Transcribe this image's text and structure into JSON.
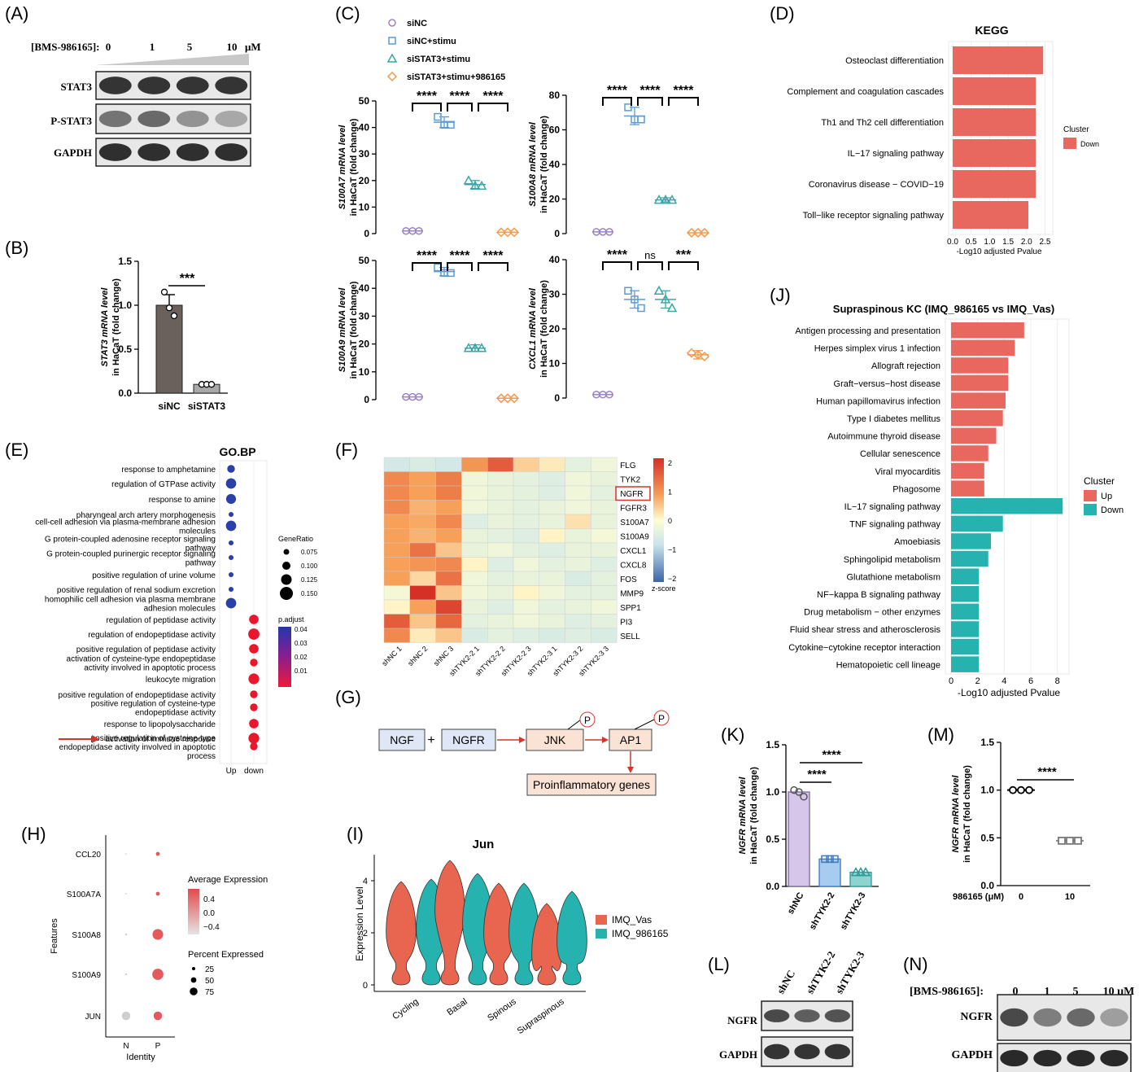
{
  "figure": {
    "colors": {
      "red": "#e8685f",
      "teal": "#26b3b0",
      "purple": "#9b83c5",
      "blue": "#5b9bd5",
      "tealmark": "#3aa6a8",
      "orange": "#f39a4e",
      "dark": "#6b615c",
      "grey": "#a8a8a8",
      "lightbar": "#d6c6e9",
      "lightblue": "#a8ccf0",
      "lightteal": "#8fd3d0"
    },
    "panels": {
      "a": "(A)",
      "b": "(B)",
      "c": "(C)",
      "d": "(D)",
      "e": "(E)",
      "f": "(F)",
      "g": "(G)",
      "h": "(H)",
      "i": "(I)",
      "j": "(J)",
      "k": "(K)",
      "l": "(L)",
      "m": "(M)",
      "n": "(N)"
    },
    "A": {
      "header": "[BMS-986165]:",
      "doses": [
        "0",
        "1",
        "5",
        "10"
      ],
      "unit": "μM",
      "rows": [
        "STAT3",
        "P-STAT3",
        "GAPDH"
      ]
    },
    "B": {
      "ylabel": "STAT3 mRNA level",
      "ylabel2": "in HaCaT (fold change)",
      "yticks": [
        "0.0",
        "0.5",
        "1.0",
        "1.5"
      ],
      "categories": [
        "siNC",
        "siSTAT3"
      ],
      "sig": "***"
    },
    "C": {
      "legend": [
        "siNC",
        "siNC+stimu",
        "siSTAT3+stimu",
        "siSTAT3+stimu+986165"
      ],
      "ylabel2": "in HaCaT (fold change)",
      "plots": [
        {
          "gene": "S100A7",
          "ylabel": "S100A7 mRNA level",
          "yticks": [
            "0",
            "10",
            "20",
            "30",
            "40",
            "50"
          ],
          "sig": [
            "****",
            "****",
            "****"
          ]
        },
        {
          "gene": "S100A8",
          "ylabel": "S100A8 mRNA level",
          "yticks": [
            "0",
            "20",
            "40",
            "60",
            "80"
          ],
          "sig": [
            "****",
            "****",
            "****"
          ]
        },
        {
          "gene": "S100A9",
          "ylabel": "S100A9 mRNA level",
          "yticks": [
            "0",
            "10",
            "20",
            "30",
            "40",
            "50"
          ],
          "sig": [
            "****",
            "****",
            "****"
          ]
        },
        {
          "gene": "CXCL1",
          "ylabel": "CXCL1 mRNA level",
          "yticks": [
            "0",
            "10",
            "20",
            "30",
            "40"
          ],
          "sig": [
            "****",
            "ns",
            "***"
          ]
        }
      ]
    },
    "D": {
      "title": "KEGG",
      "xlabel": "-Log10 adjusted Pvalue",
      "xticks": [
        "0.0",
        "0.5",
        "1.0",
        "1.5",
        "2.0",
        "2.5"
      ],
      "legend_title": "Cluster",
      "legend": [
        "Down"
      ]
    },
    "E": {
      "title": "GO.BP",
      "xcats": [
        "Up",
        "down"
      ],
      "size_title": "GeneRatio",
      "size_labels": [
        "0.075",
        "0.100",
        "0.125",
        "0.150"
      ],
      "color_title": "p.adjust",
      "color_labels": [
        "0.04",
        "0.03",
        "0.02",
        "0.01"
      ],
      "terms": [
        [
          "response to amphetamine"
        ],
        [
          "regulation of GTPase activity"
        ],
        [
          "response to amine"
        ],
        [
          "pharyngeal arch artery morphogenesis"
        ],
        [
          "cell-cell adhesion via plasma-membrane adhesion",
          "molecules"
        ],
        [
          "G protein-coupled adenosine receptor signaling",
          "pathway"
        ],
        [
          "G protein-coupled purinergic receptor signaling",
          "pathway"
        ],
        [
          "positive regulation of urine volume"
        ],
        [
          "positive regulation of renal sodium excretion"
        ],
        [
          "homophilic cell adhesion via plasma membrane",
          "adhesion molecules"
        ],
        [
          "regulation of peptidase activity"
        ],
        [
          "regulation of endopeptidase activity"
        ],
        [
          "positive regulation of peptidase activity"
        ],
        [
          "activation of cysteine-type endopeptidase",
          "activity involved in apoptotic process"
        ],
        [
          "leukocyte migration"
        ],
        [
          "positive regulation of endopeptidase activity"
        ],
        [
          "positive regulation of cysteine-type",
          "endopeptidase activity"
        ],
        [
          "response to lipopolysaccharide"
        ],
        [
          "activation of immune response"
        ],
        [
          "positive regulation of cysteine-type",
          "endopeptidase activity involved in apoptotic",
          "process"
        ]
      ]
    },
    "F": {
      "genes": [
        "FLG",
        "TYK2",
        "NGFR",
        "FGFR3",
        "S100A7",
        "S100A9",
        "CXCL1",
        "CXCL8",
        "FOS",
        "MMP9",
        "SPP1",
        "PI3",
        "SELL"
      ],
      "samples": [
        "shNC 1",
        "shNC 2",
        "shNC 3",
        "shTYK2-2 1",
        "shTYK2-2 2",
        "shTYK2-2 3",
        "shTYK2-3 1",
        "shTYK2-3 2",
        "shTYK2-3 3"
      ],
      "scale_labels": [
        "2",
        "1",
        "0",
        "−1",
        "−2"
      ],
      "scale_title": "z-score"
    },
    "G": {
      "ngf": "NGF",
      "plus": "+",
      "ngfr": "NGFR",
      "jnk": "JNK",
      "ap1": "AP1",
      "p": "P",
      "out": "Proinflammatory genes"
    },
    "H": {
      "features": [
        "CCL20",
        "S100A7A",
        "S100A8",
        "S100A9",
        "JUN"
      ],
      "identity": [
        "N",
        "P"
      ],
      "ylabel": "Features",
      "xlabel": "Identity",
      "avg_title": "Average Expression",
      "avg_labels": [
        "0.4",
        "0.0",
        "−0.4"
      ],
      "pct_title": "Percent Expressed",
      "pct_labels": [
        "25",
        "50",
        "75"
      ]
    },
    "I": {
      "title": "Jun",
      "ylabel": "Expression Level",
      "yticks": [
        "0",
        "2",
        "4"
      ],
      "categories": [
        "Cycling",
        "Basal",
        "Spinous",
        "Supraspinous"
      ],
      "legend": [
        "IMQ_Vas",
        "IMQ_986165"
      ]
    },
    "J": {
      "title": "Supraspinous  KC  (IMQ_986165 vs IMQ_Vas)",
      "xlabel": "-Log10 adjusted Pvalue",
      "xticks": [
        "0",
        "2",
        "4",
        "6",
        "8"
      ],
      "legend_title": "Cluster",
      "legend": [
        "Up",
        "Down"
      ]
    },
    "K": {
      "ylabel": "NGFR mRNA level",
      "ylabel2": "in HaCaT (fold change)",
      "yticks": [
        "0.0",
        "0.5",
        "1.0",
        "1.5"
      ],
      "categories": [
        "shNC",
        "shTYK2-2",
        "shTYK2-3"
      ],
      "sig": [
        "****",
        "****"
      ]
    },
    "L": {
      "lanes": [
        "shNC",
        "shTYK2-2",
        "shTYK2-3"
      ],
      "rows": [
        "NGFR",
        "GAPDH"
      ]
    },
    "M": {
      "ylabel": "NGFR mRNA level",
      "ylabel2": "in HaCaT (fold change)",
      "yticks": [
        "0.0",
        "0.5",
        "1.0",
        "1.5"
      ],
      "xlabel": "986165 (μM)",
      "categories": [
        "0",
        "10"
      ],
      "sig": "****"
    },
    "N": {
      "header": "[BMS-986165]:",
      "doses": [
        "0",
        "1",
        "5",
        "10 μM"
      ],
      "rows": [
        "NGFR",
        "GAPDH"
      ]
    }
  },
  "chart_data": [
    {
      "panel": "B",
      "type": "bar",
      "categories": [
        "siNC",
        "siSTAT3"
      ],
      "values": [
        1.0,
        0.1
      ],
      "points": [
        [
          1.15,
          0.97,
          0.88
        ],
        [
          0.1,
          0.1,
          0.1
        ]
      ],
      "ylabel": "STAT3 mRNA level in HaCaT (fold change)",
      "ylim": [
        0,
        1.5
      ]
    },
    {
      "panel": "C1",
      "type": "scatter",
      "categories": [
        "siNC",
        "siNC+stimu",
        "siSTAT3+stimu",
        "siSTAT3+stimu+986165"
      ],
      "means": [
        1,
        42,
        18.5,
        0.5
      ],
      "points": [
        [
          1,
          1,
          1
        ],
        [
          44,
          41,
          41
        ],
        [
          20,
          18,
          18
        ],
        [
          0.5,
          0.5,
          0.5
        ]
      ],
      "ylabel": "S100A7 mRNA level in HaCaT (fold change)",
      "ylim": [
        0,
        50
      ]
    },
    {
      "panel": "C2",
      "type": "scatter",
      "categories": [
        "siNC",
        "siNC+stimu",
        "siSTAT3+stimu",
        "siSTAT3+stimu+986165"
      ],
      "means": [
        1,
        68,
        19.5,
        0.5
      ],
      "points": [
        [
          1,
          1,
          1
        ],
        [
          73,
          66,
          66
        ],
        [
          19.5,
          19.5,
          19.5
        ],
        [
          0.5,
          0.5,
          0.5
        ]
      ],
      "ylabel": "S100A8 mRNA level in HaCaT (fold change)",
      "ylim": [
        0,
        80
      ]
    },
    {
      "panel": "C3",
      "type": "scatter",
      "categories": [
        "siNC",
        "siNC+stimu",
        "siSTAT3+stimu",
        "siSTAT3+stimu+986165"
      ],
      "means": [
        1,
        46,
        18.5,
        0.5
      ],
      "points": [
        [
          1,
          1,
          1
        ],
        [
          47.5,
          45.5,
          45.5
        ],
        [
          18.5,
          18.5,
          18.5
        ],
        [
          0.5,
          0.5,
          0.5
        ]
      ],
      "ylabel": "S100A9 mRNA level in HaCaT (fold change)",
      "ylim": [
        0,
        50
      ]
    },
    {
      "panel": "C4",
      "type": "scatter",
      "categories": [
        "siNC",
        "siNC+stimu",
        "siSTAT3+stimu",
        "siSTAT3+stimu+986165"
      ],
      "means": [
        1,
        28.5,
        28.5,
        12.5
      ],
      "points": [
        [
          1,
          1,
          1
        ],
        [
          31,
          28.5,
          26
        ],
        [
          31,
          28.5,
          26
        ],
        [
          13,
          12.5,
          12
        ]
      ],
      "ylabel": "CXCL1 mRNA level in HaCaT (fold change)",
      "ylim": [
        0,
        40
      ]
    },
    {
      "panel": "D",
      "type": "bar",
      "categories": [
        "Osteoclast differentiation",
        "Complement and coagulation cascades",
        "Th1 and Th2 cell differentiation",
        "IL−17 signaling pathway",
        "Coronavirus disease − COVID−19",
        "Toll−like receptor signaling pathway"
      ],
      "values": [
        2.45,
        2.25,
        2.25,
        2.25,
        2.25,
        2.05
      ],
      "series": [
        {
          "name": "Down",
          "values": [
            2.45,
            2.25,
            2.25,
            2.25,
            2.25,
            2.05
          ]
        }
      ],
      "xlabel": "−Log10 adjusted Pvalue",
      "xlim": [
        0,
        2.6
      ]
    },
    {
      "panel": "E",
      "type": "scatter",
      "groups": [
        "Up",
        "Up",
        "Up",
        "Up",
        "Up",
        "Up",
        "Up",
        "Up",
        "Up",
        "Up",
        "down",
        "down",
        "down",
        "down",
        "down",
        "down",
        "down",
        "down",
        "down",
        "down"
      ],
      "gene_ratio": [
        0.1,
        0.13,
        0.125,
        0.07,
        0.13,
        0.07,
        0.07,
        0.07,
        0.07,
        0.13,
        0.12,
        0.14,
        0.12,
        0.1,
        0.135,
        0.1,
        0.1,
        0.12,
        0.135,
        0.1
      ],
      "p_adjust": [
        0.045,
        0.045,
        0.045,
        0.045,
        0.045,
        0.045,
        0.045,
        0.045,
        0.045,
        0.045,
        0.005,
        0.005,
        0.005,
        0.005,
        0.005,
        0.005,
        0.005,
        0.005,
        0.005,
        0.005
      ]
    },
    {
      "panel": "F",
      "type": "heatmap",
      "rows": [
        "FLG",
        "TYK2",
        "NGFR",
        "FGFR3",
        "S100A7",
        "S100A9",
        "CXCL1",
        "CXCL8",
        "FOS",
        "MMP9",
        "SPP1",
        "PI3",
        "SELL"
      ],
      "columns": [
        "shNC 1",
        "shNC 2",
        "shNC 3",
        "shTYK2-2 1",
        "shTYK2-2 2",
        "shTYK2-2 3",
        "shTYK2-3 1",
        "shTYK2-3 2",
        "shTYK2-3 3"
      ],
      "values": [
        [
          -0.8,
          -0.7,
          -0.8,
          1.1,
          1.6,
          0.5,
          0.2,
          -0.5,
          -0.3
        ],
        [
          1.2,
          1.0,
          1.3,
          -0.3,
          -0.4,
          -0.5,
          -0.6,
          -0.3,
          -0.4
        ],
        [
          1.2,
          1.0,
          1.3,
          -0.3,
          -0.4,
          -0.5,
          -0.6,
          -0.3,
          -0.5
        ],
        [
          1.2,
          0.8,
          1.0,
          -0.3,
          -0.4,
          -0.5,
          -0.4,
          -0.3,
          -0.4
        ],
        [
          1.0,
          0.9,
          1.2,
          -0.6,
          -0.4,
          -0.5,
          -0.4,
          0.3,
          -0.4
        ],
        [
          1.0,
          0.8,
          1.0,
          -0.4,
          -0.5,
          -0.6,
          0.1,
          -0.4,
          -0.2
        ],
        [
          1.0,
          1.4,
          0.6,
          -0.4,
          -0.3,
          -0.5,
          -0.6,
          -0.4,
          -0.4
        ],
        [
          1.0,
          1.1,
          1.2,
          0.1,
          -0.6,
          -0.3,
          -0.5,
          -0.4,
          -0.6
        ],
        [
          1.0,
          0.4,
          1.4,
          -0.3,
          -0.5,
          -0.4,
          -0.4,
          -0.7,
          -0.5
        ],
        [
          -0.2,
          2.0,
          0.6,
          -0.3,
          -0.4,
          0.1,
          -0.3,
          -0.5,
          -0.5
        ],
        [
          0.1,
          1.0,
          1.8,
          -0.4,
          -0.6,
          -0.3,
          -0.5,
          -0.4,
          -0.3
        ],
        [
          1.6,
          0.6,
          1.5,
          -0.5,
          -0.4,
          -0.3,
          -0.4,
          -0.6,
          -0.5
        ],
        [
          1.2,
          0.2,
          0.6,
          -0.7,
          -0.5,
          -0.6,
          -0.7,
          -0.6,
          -0.7
        ]
      ],
      "zlim": [
        -2,
        2
      ]
    },
    {
      "panel": "H",
      "type": "scatter",
      "features": [
        "CCL20",
        "S100A7A",
        "S100A8",
        "S100A9",
        "JUN"
      ],
      "identity": [
        "N",
        "P"
      ],
      "avg_expression": [
        [
          -0.4,
          0.4
        ],
        [
          -0.4,
          0.4
        ],
        [
          -0.4,
          0.4
        ],
        [
          -0.4,
          0.4
        ],
        [
          -0.4,
          0.4
        ]
      ],
      "percent_expressed": [
        [
          1,
          8
        ],
        [
          1,
          8
        ],
        [
          2,
          60
        ],
        [
          2,
          65
        ],
        [
          38,
          38
        ]
      ]
    },
    {
      "panel": "I",
      "type": "violin",
      "categories": [
        "Cycling",
        "Basal",
        "Spinous",
        "Supraspinous"
      ],
      "series": [
        {
          "name": "IMQ_Vas"
        },
        {
          "name": "IMQ_986165"
        }
      ],
      "ylabel": "Expression Level",
      "ylim": [
        0,
        5
      ]
    },
    {
      "panel": "J",
      "type": "bar",
      "categories": [
        "Antigen processing and presentation",
        "Herpes simplex virus 1 infection",
        "Allograft rejection",
        "Graft−versus−host disease",
        "Human papillomavirus infection",
        "Type I diabetes mellitus",
        "Autoimmune thyroid disease",
        "Cellular senescence",
        "Viral myocarditis",
        "Phagosome",
        "IL−17 signaling pathway",
        "TNF signaling pathway",
        "Amoebiasis",
        "Sphingolipid metabolism",
        "Glutathione metabolism",
        "NF−kappa B signaling pathway",
        "Drug metabolism − other enzymes",
        "Fluid shear stress and atherosclerosis",
        "Cytokine−cytokine receptor interaction",
        "Hematopoietic cell lineage"
      ],
      "values": [
        5.5,
        4.8,
        4.3,
        4.3,
        4.1,
        3.9,
        3.4,
        2.8,
        2.5,
        2.5,
        8.4,
        3.9,
        3.0,
        2.8,
        2.1,
        2.1,
        2.1,
        2.1,
        2.1,
        2.1
      ],
      "clusters": [
        "Up",
        "Up",
        "Up",
        "Up",
        "Up",
        "Up",
        "Up",
        "Up",
        "Up",
        "Up",
        "Down",
        "Down",
        "Down",
        "Down",
        "Down",
        "Down",
        "Down",
        "Down",
        "Down",
        "Down"
      ],
      "xlabel": "−Log10 adjusted Pvalue",
      "xlim": [
        0,
        9
      ]
    },
    {
      "panel": "K",
      "type": "bar",
      "categories": [
        "shNC",
        "shTYK2-2",
        "shTYK2-3"
      ],
      "values": [
        1.0,
        0.29,
        0.15
      ],
      "points": [
        [
          1.02,
          1.0,
          0.95
        ],
        [
          0.29,
          0.29,
          0.29
        ],
        [
          0.15,
          0.15,
          0.15
        ]
      ],
      "ylabel": "NGFR mRNA level in HaCaT (fold change)",
      "ylim": [
        0,
        1.5
      ]
    },
    {
      "panel": "M",
      "type": "scatter",
      "categories": [
        "0",
        "10"
      ],
      "means": [
        1.0,
        0.47
      ],
      "points": [
        [
          1.0,
          1.0,
          1.0
        ],
        [
          0.47,
          0.47,
          0.47
        ]
      ],
      "xlabel": "986165 (μM)",
      "ylabel": "NGFR mRNA level in HaCaT (fold change)",
      "ylim": [
        0,
        1.5
      ]
    }
  ]
}
